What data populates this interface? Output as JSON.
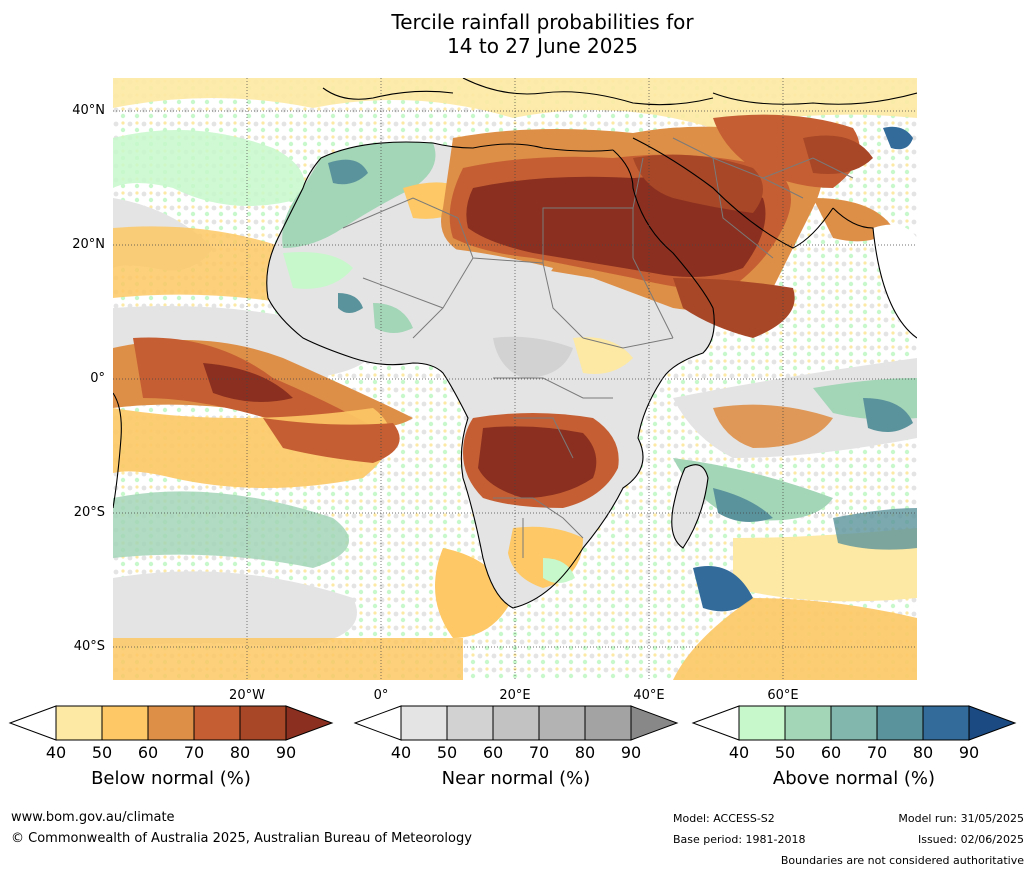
{
  "title_line1": "Tercile rainfall probabilities for",
  "title_line2": "14 to 27 June 2025",
  "lat_labels": [
    "40°N",
    "20°N",
    "0°",
    "20°S",
    "40°S"
  ],
  "lon_labels": [
    "20°W",
    "0°",
    "20°E",
    "40°E",
    "60°E"
  ],
  "colorbars": [
    {
      "title": "Below normal (%)",
      "ticks": [
        "40",
        "50",
        "60",
        "70",
        "80",
        "90"
      ],
      "colors": [
        "#ffffff",
        "#fde9a3",
        "#fdc865",
        "#de8f47",
        "#c55f33",
        "#a74727",
        "#8b3020"
      ]
    },
    {
      "title": "Near normal (%)",
      "ticks": [
        "40",
        "50",
        "60",
        "70",
        "80",
        "90"
      ],
      "colors": [
        "#ffffff",
        "#e4e4e4",
        "#d2d2d2",
        "#c2c2c2",
        "#b3b3b3",
        "#a3a3a3",
        "#888888"
      ]
    },
    {
      "title": "Above normal (%)",
      "ticks": [
        "40",
        "50",
        "60",
        "70",
        "80",
        "90"
      ],
      "colors": [
        "#ffffff",
        "#c7f8cb",
        "#a3d5b7",
        "#82b7ae",
        "#5b939c",
        "#336c9a",
        "#1b4a83"
      ]
    }
  ],
  "footer": {
    "url": "www.bom.gov.au/climate",
    "copyright": "© Commonwealth of Australia 2025, Australian Bureau of Meteorology",
    "model": "Model: ACCESS-S2",
    "base_period": "Base period: 1981-2018",
    "model_run": "Model run: 31/05/2025",
    "issued": "Issued: 02/06/2025",
    "disclaimer": "Boundaries are not considered authoritative"
  }
}
